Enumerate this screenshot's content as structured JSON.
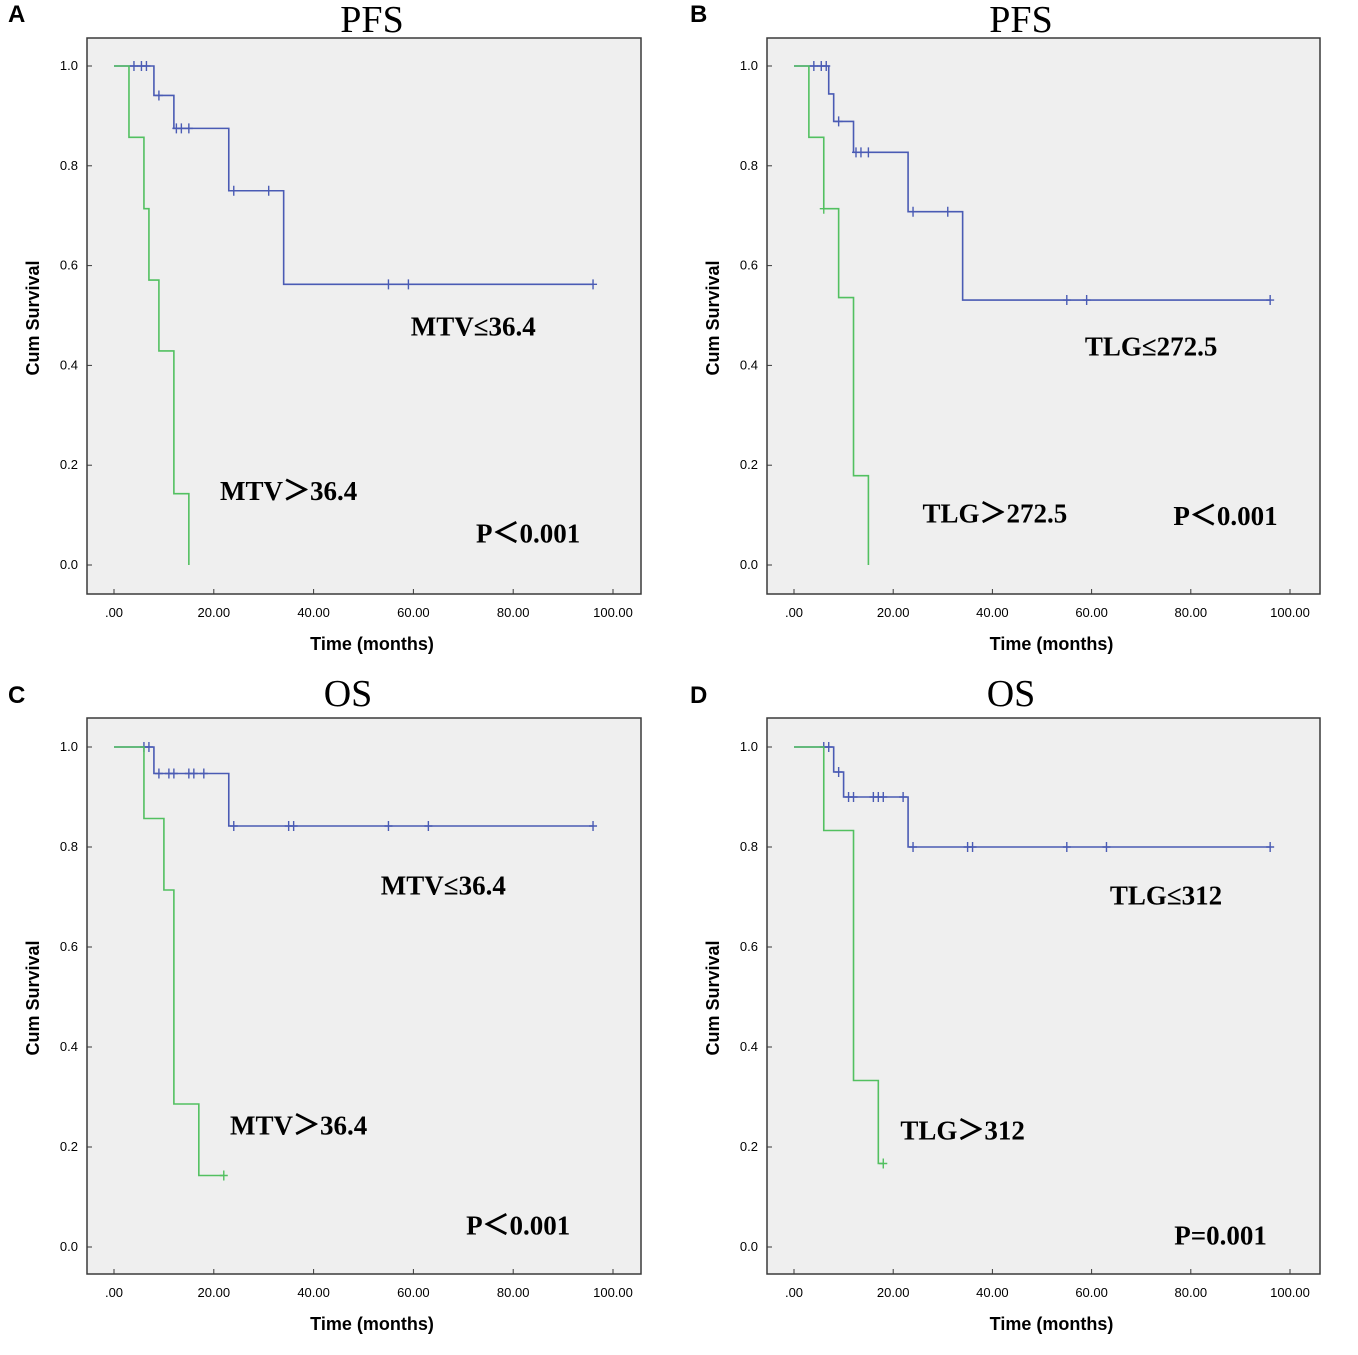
{
  "chart_data": [
    {
      "type": "line",
      "panel": "A",
      "title": "PFS",
      "xlabel": "Time (months)",
      "ylabel": "Cum Survival",
      "xlim": [
        0,
        100
      ],
      "ylim": [
        0,
        1
      ],
      "x_tick_labels": [
        ".00",
        "20.00",
        "40.00",
        "60.00",
        "80.00",
        "100.00"
      ],
      "y_tick_labels": [
        "0.0",
        "0.2",
        "0.4",
        "0.6",
        "0.8",
        "1.0"
      ],
      "series": [
        {
          "name": "MTV≤36.4",
          "color": "#4a5bb4",
          "steps": [
            [
              0,
              1.0
            ],
            [
              8,
              0.941
            ],
            [
              12,
              0.875
            ],
            [
              23,
              0.75
            ],
            [
              34,
              0.5625
            ]
          ],
          "end_x": 96,
          "censored": [
            [
              4,
              1.0
            ],
            [
              5.5,
              1.0
            ],
            [
              6.5,
              1.0
            ],
            [
              9,
              0.941
            ],
            [
              12.5,
              0.875
            ],
            [
              13.5,
              0.875
            ],
            [
              15,
              0.875
            ],
            [
              24,
              0.75
            ],
            [
              31,
              0.75
            ],
            [
              55,
              0.5625
            ],
            [
              59,
              0.5625
            ],
            [
              96,
              0.5625
            ]
          ]
        },
        {
          "name": "MTV>36.4",
          "color": "#52c060",
          "steps": [
            [
              0,
              1.0
            ],
            [
              3,
              0.857
            ],
            [
              6,
              0.714
            ],
            [
              7,
              0.571
            ],
            [
              9,
              0.429
            ],
            [
              12,
              0.143
            ],
            [
              15,
              0.0
            ]
          ],
          "end_x": 15,
          "censored": []
        }
      ],
      "annotations": [
        {
          "text": "MTV≤36.4",
          "x": 72,
          "y": 0.46
        },
        {
          "text": "MTV＞36.4",
          "x": 35,
          "y": 0.13
        },
        {
          "text": "P＜0.001",
          "x": 83,
          "y": 0.045
        }
      ]
    },
    {
      "type": "line",
      "panel": "B",
      "title": "PFS",
      "xlabel": "Time (months)",
      "ylabel": "Cum Survival",
      "xlim": [
        0,
        100
      ],
      "ylim": [
        0,
        1
      ],
      "x_tick_labels": [
        ".00",
        "20.00",
        "40.00",
        "60.00",
        "80.00",
        "100.00"
      ],
      "y_tick_labels": [
        "0.0",
        "0.2",
        "0.4",
        "0.6",
        "0.8",
        "1.0"
      ],
      "series": [
        {
          "name": "TLG≤272.5",
          "color": "#4a5bb4",
          "steps": [
            [
              0,
              1.0
            ],
            [
              7,
              0.944
            ],
            [
              8,
              0.889
            ],
            [
              12,
              0.827
            ],
            [
              23,
              0.708
            ],
            [
              34,
              0.531
            ]
          ],
          "end_x": 96,
          "censored": [
            [
              4,
              1.0
            ],
            [
              5.5,
              1.0
            ],
            [
              6.5,
              1.0
            ],
            [
              9,
              0.889
            ],
            [
              12.5,
              0.827
            ],
            [
              13.5,
              0.827
            ],
            [
              15,
              0.827
            ],
            [
              24,
              0.708
            ],
            [
              31,
              0.708
            ],
            [
              55,
              0.531
            ],
            [
              59,
              0.531
            ],
            [
              96,
              0.531
            ]
          ]
        },
        {
          "name": "TLG>272.5",
          "color": "#52c060",
          "steps": [
            [
              0,
              1.0
            ],
            [
              3,
              0.857
            ],
            [
              6,
              0.714
            ],
            [
              9,
              0.536
            ],
            [
              12,
              0.179
            ],
            [
              15,
              0.0
            ]
          ],
          "end_x": 15,
          "censored": [
            [
              6,
              0.714
            ]
          ]
        }
      ],
      "annotations": [
        {
          "text": "TLG≤272.5",
          "x": 72,
          "y": 0.42
        },
        {
          "text": "TLG＞272.5",
          "x": 40.5,
          "y": 0.085
        },
        {
          "text": "P＜0.001",
          "x": 87,
          "y": 0.08
        }
      ]
    },
    {
      "type": "line",
      "panel": "C",
      "title": "OS",
      "xlabel": "Time (months)",
      "ylabel": "Cum Survival",
      "xlim": [
        0,
        100
      ],
      "ylim": [
        0,
        1
      ],
      "x_tick_labels": [
        ".00",
        "20.00",
        "40.00",
        "60.00",
        "80.00",
        "100.00"
      ],
      "y_tick_labels": [
        "0.0",
        "0.2",
        "0.4",
        "0.6",
        "0.8",
        "1.0"
      ],
      "series": [
        {
          "name": "MTV≤36.4",
          "color": "#4a5bb4",
          "steps": [
            [
              0,
              1.0
            ],
            [
              8,
              0.947
            ],
            [
              23,
              0.842
            ]
          ],
          "end_x": 96,
          "censored": [
            [
              6,
              1.0
            ],
            [
              7,
              1.0
            ],
            [
              9,
              0.947
            ],
            [
              11,
              0.947
            ],
            [
              12,
              0.947
            ],
            [
              15,
              0.947
            ],
            [
              16,
              0.947
            ],
            [
              18,
              0.947
            ],
            [
              24,
              0.842
            ],
            [
              35,
              0.842
            ],
            [
              36,
              0.842
            ],
            [
              55,
              0.842
            ],
            [
              63,
              0.842
            ],
            [
              96,
              0.842
            ]
          ]
        },
        {
          "name": "MTV>36.4",
          "color": "#52c060",
          "steps": [
            [
              0,
              1.0
            ],
            [
              6,
              0.857
            ],
            [
              10,
              0.714
            ],
            [
              12,
              0.286
            ],
            [
              17,
              0.143
            ]
          ],
          "end_x": 22,
          "censored": [
            [
              22,
              0.143
            ]
          ]
        }
      ],
      "annotations": [
        {
          "text": "MTV≤36.4",
          "x": 66,
          "y": 0.705
        },
        {
          "text": "MTV＞36.4",
          "x": 37,
          "y": 0.225
        },
        {
          "text": "P＜0.001",
          "x": 81,
          "y": 0.025
        }
      ]
    },
    {
      "type": "line",
      "panel": "D",
      "title": "OS",
      "xlabel": "Time (months)",
      "ylabel": "Cum Survival",
      "xlim": [
        0,
        100
      ],
      "ylim": [
        0,
        1
      ],
      "x_tick_labels": [
        ".00",
        "20.00",
        "40.00",
        "60.00",
        "80.00",
        "100.00"
      ],
      "y_tick_labels": [
        "0.0",
        "0.2",
        "0.4",
        "0.6",
        "0.8",
        "1.0"
      ],
      "series": [
        {
          "name": "TLG≤312",
          "color": "#4a5bb4",
          "steps": [
            [
              0,
              1.0
            ],
            [
              8,
              0.95
            ],
            [
              10,
              0.9
            ],
            [
              23,
              0.8
            ]
          ],
          "end_x": 96,
          "censored": [
            [
              6,
              1.0
            ],
            [
              7,
              1.0
            ],
            [
              9,
              0.95
            ],
            [
              11,
              0.9
            ],
            [
              12,
              0.9
            ],
            [
              16,
              0.9
            ],
            [
              17,
              0.9
            ],
            [
              18,
              0.9
            ],
            [
              22,
              0.9
            ],
            [
              24,
              0.8
            ],
            [
              35,
              0.8
            ],
            [
              36,
              0.8
            ],
            [
              55,
              0.8
            ],
            [
              63,
              0.8
            ],
            [
              96,
              0.8
            ]
          ]
        },
        {
          "name": "TLG>312",
          "color": "#52c060",
          "steps": [
            [
              0,
              1.0
            ],
            [
              6,
              0.833
            ],
            [
              12,
              0.333
            ],
            [
              17,
              0.167
            ]
          ],
          "end_x": 18,
          "censored": [
            [
              18,
              0.167
            ]
          ]
        }
      ],
      "annotations": [
        {
          "text": "TLG≤312",
          "x": 75,
          "y": 0.685
        },
        {
          "text": "TLG＞312",
          "x": 34,
          "y": 0.215
        },
        {
          "text": "P=0.001",
          "x": 86,
          "y": 0.005
        }
      ]
    }
  ]
}
